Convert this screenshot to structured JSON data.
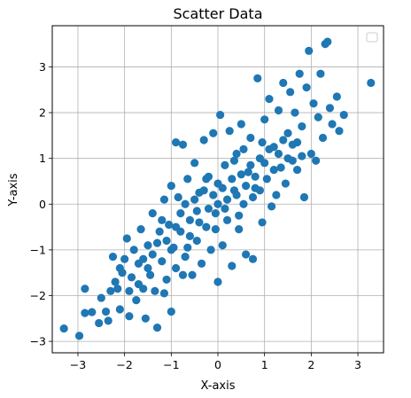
{
  "chart_data": {
    "type": "scatter",
    "title": "Scatter Data",
    "xlabel": "X-axis",
    "ylabel": "Y-axis",
    "xlim": [
      -3.55,
      3.55
    ],
    "ylim": [
      -3.25,
      3.9
    ],
    "xticks": [
      -3,
      -2,
      -1,
      0,
      1,
      2,
      3
    ],
    "yticks": [
      -3,
      -2,
      -1,
      0,
      1,
      2,
      3
    ],
    "xtick_labels": [
      "−3",
      "−2",
      "−1",
      "0",
      "1",
      "2",
      "3"
    ],
    "ytick_labels": [
      "−3",
      "−2",
      "−1",
      "0",
      "1",
      "2",
      "3"
    ],
    "grid": true,
    "legend": {
      "placement": "top-right",
      "entries": []
    },
    "marker_color": "#1f77b4",
    "series": [
      {
        "points": [
          [
            -3.3,
            -2.72
          ],
          [
            -2.97,
            -2.88
          ],
          [
            -2.85,
            -1.85
          ],
          [
            -2.85,
            -2.38
          ],
          [
            -2.7,
            -2.36
          ],
          [
            -2.55,
            -2.6
          ],
          [
            -2.5,
            -2.05
          ],
          [
            -2.4,
            -2.35
          ],
          [
            -2.35,
            -2.55
          ],
          [
            -2.3,
            -1.9
          ],
          [
            -2.25,
            -1.15
          ],
          [
            -2.2,
            -1.7
          ],
          [
            -2.15,
            -1.85
          ],
          [
            -2.1,
            -2.3
          ],
          [
            -2.05,
            -1.5
          ],
          [
            -2.0,
            -1.2
          ],
          [
            -1.95,
            -0.75
          ],
          [
            -1.9,
            -2.45
          ],
          [
            -1.85,
            -1.6
          ],
          [
            -1.8,
            -1.0
          ],
          [
            -1.75,
            -2.1
          ],
          [
            -1.7,
            -1.3
          ],
          [
            -1.65,
            -0.55
          ],
          [
            -1.6,
            -1.85
          ],
          [
            -1.55,
            -2.5
          ],
          [
            -1.5,
            -0.9
          ],
          [
            -1.45,
            -1.55
          ],
          [
            -1.4,
            -0.2
          ],
          [
            -1.35,
            -1.9
          ],
          [
            -1.3,
            -2.7
          ],
          [
            -1.25,
            -0.6
          ],
          [
            -1.2,
            -1.25
          ],
          [
            -1.15,
            0.1
          ],
          [
            -1.1,
            -1.65
          ],
          [
            -1.05,
            -0.45
          ],
          [
            -1.0,
            -2.35
          ],
          [
            -1.0,
            0.4
          ],
          [
            -0.95,
            -0.95
          ],
          [
            -0.9,
            1.35
          ],
          [
            -0.9,
            -1.4
          ],
          [
            -0.85,
            0.15
          ],
          [
            -0.8,
            -0.6
          ],
          [
            -0.75,
            1.3
          ],
          [
            -0.7,
            -1.15
          ],
          [
            -0.65,
            0.55
          ],
          [
            -0.6,
            -0.35
          ],
          [
            -0.55,
            -1.55
          ],
          [
            -0.5,
            0.9
          ],
          [
            -0.45,
            -0.8
          ],
          [
            -0.4,
            0.25
          ],
          [
            -0.35,
            -1.3
          ],
          [
            -0.3,
            1.4
          ],
          [
            -0.25,
            -0.5
          ],
          [
            -0.2,
            0.6
          ],
          [
            -0.15,
            -1.0
          ],
          [
            -0.1,
            1.55
          ],
          [
            -0.05,
            -0.2
          ],
          [
            0.0,
            0.45
          ],
          [
            0.0,
            -1.7
          ],
          [
            0.05,
            1.95
          ],
          [
            0.1,
            -0.9
          ],
          [
            0.15,
            0.85
          ],
          [
            0.2,
            -0.35
          ],
          [
            0.25,
            1.6
          ],
          [
            0.3,
            -1.35
          ],
          [
            0.35,
            0.3
          ],
          [
            0.4,
            1.1
          ],
          [
            0.45,
            -0.55
          ],
          [
            0.5,
            1.75
          ],
          [
            0.55,
            0.0
          ],
          [
            0.6,
            -1.1
          ],
          [
            0.65,
            0.7
          ],
          [
            0.7,
            1.45
          ],
          [
            0.75,
            -1.2
          ],
          [
            0.8,
            0.35
          ],
          [
            0.85,
            2.75
          ],
          [
            0.9,
            1.0
          ],
          [
            0.95,
            -0.4
          ],
          [
            1.0,
            1.85
          ],
          [
            1.05,
            0.55
          ],
          [
            1.1,
            2.3
          ],
          [
            1.15,
            -0.05
          ],
          [
            1.2,
            1.25
          ],
          [
            1.25,
            0.2
          ],
          [
            1.3,
            2.05
          ],
          [
            1.35,
            0.8
          ],
          [
            1.4,
            2.65
          ],
          [
            1.45,
            0.45
          ],
          [
            1.5,
            1.55
          ],
          [
            1.55,
            2.45
          ],
          [
            1.6,
            0.95
          ],
          [
            1.65,
            2.0
          ],
          [
            1.7,
            1.35
          ],
          [
            1.75,
            2.85
          ],
          [
            1.8,
            1.7
          ],
          [
            1.85,
            0.15
          ],
          [
            1.9,
            2.55
          ],
          [
            1.95,
            3.35
          ],
          [
            2.0,
            1.1
          ],
          [
            2.05,
            2.2
          ],
          [
            2.1,
            0.95
          ],
          [
            2.15,
            1.9
          ],
          [
            2.2,
            2.85
          ],
          [
            2.25,
            1.45
          ],
          [
            2.3,
            3.5
          ],
          [
            2.35,
            3.55
          ],
          [
            2.4,
            2.1
          ],
          [
            2.45,
            1.75
          ],
          [
            2.55,
            2.35
          ],
          [
            2.6,
            1.6
          ],
          [
            2.7,
            1.95
          ],
          [
            3.28,
            2.65
          ],
          [
            -2.1,
            -1.4
          ],
          [
            -1.9,
            -1.9
          ],
          [
            -1.7,
            -1.75
          ],
          [
            -1.6,
            -1.2
          ],
          [
            -1.5,
            -1.4
          ],
          [
            -1.4,
            -1.1
          ],
          [
            -1.3,
            -0.85
          ],
          [
            -1.2,
            -0.35
          ],
          [
            -1.1,
            -0.8
          ],
          [
            -1.0,
            -1.0
          ],
          [
            -0.9,
            -0.5
          ],
          [
            -0.8,
            -0.2
          ],
          [
            -0.7,
            0.0
          ],
          [
            -0.6,
            -0.7
          ],
          [
            -0.5,
            0.1
          ],
          [
            -0.4,
            -0.4
          ],
          [
            -0.3,
            0.3
          ],
          [
            -0.2,
            -0.1
          ],
          [
            -0.1,
            0.2
          ],
          [
            0.0,
            0.0
          ],
          [
            0.1,
            0.35
          ],
          [
            0.2,
            0.1
          ],
          [
            0.3,
            0.55
          ],
          [
            0.4,
            0.2
          ],
          [
            0.5,
            0.65
          ],
          [
            0.6,
            0.4
          ],
          [
            0.7,
            0.85
          ],
          [
            0.8,
            0.6
          ],
          [
            0.9,
            0.3
          ],
          [
            1.0,
            0.9
          ],
          [
            1.1,
            1.2
          ],
          [
            1.2,
            0.75
          ],
          [
            1.3,
            1.1
          ],
          [
            1.4,
            1.4
          ],
          [
            1.5,
            1.0
          ],
          [
            1.6,
            1.3
          ],
          [
            1.7,
            0.75
          ],
          [
            1.8,
            1.05
          ],
          [
            -0.65,
            -0.95
          ],
          [
            -0.45,
            -0.15
          ],
          [
            -0.25,
            0.55
          ],
          [
            -0.05,
            -0.55
          ],
          [
            0.15,
            -0.1
          ],
          [
            0.35,
            0.95
          ],
          [
            0.55,
            1.2
          ],
          [
            0.75,
            0.15
          ],
          [
            -1.15,
            -1.95
          ],
          [
            -0.75,
            -1.55
          ],
          [
            0.45,
            -0.25
          ],
          [
            0.95,
            1.35
          ]
        ]
      }
    ]
  }
}
